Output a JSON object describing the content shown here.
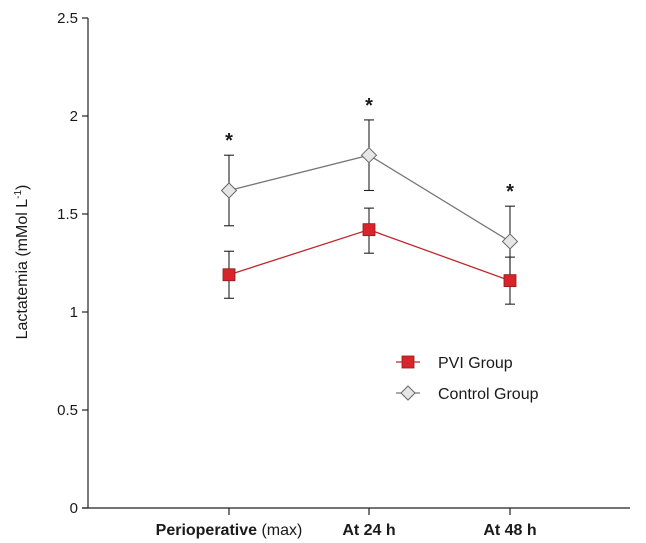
{
  "chart_data": {
    "type": "line",
    "title": "",
    "xlabel": "",
    "ylabel": "Lactatemia (mMol L",
    "ylabel_superscript": "-1",
    "ylabel_suffix": ")",
    "ylim": [
      0,
      2.5
    ],
    "yticks": [
      {
        "value": 0,
        "label": "0"
      },
      {
        "value": 0.5,
        "label": "0.5"
      },
      {
        "value": 1,
        "label": "1"
      },
      {
        "value": 1.5,
        "label": "1.5"
      },
      {
        "value": 2,
        "label": "2"
      },
      {
        "value": 2.5,
        "label": "2.5"
      }
    ],
    "categories": [
      {
        "bold": "Perioperative",
        "normal": " (max)"
      },
      {
        "bold": "At 24 h",
        "normal": ""
      },
      {
        "bold": "At 48 h",
        "normal": ""
      }
    ],
    "series": [
      {
        "name": "PVI Group",
        "marker": "square",
        "color": "#d9242b",
        "line_color": "#c0272d",
        "values": [
          1.19,
          1.42,
          1.16
        ],
        "err_upper": [
          1.31,
          1.53,
          1.28
        ],
        "err_lower": [
          1.07,
          1.3,
          1.04
        ]
      },
      {
        "name": "Control Group",
        "marker": "diamond",
        "color": "#e6e6e6",
        "line_color": "#777777",
        "values": [
          1.62,
          1.8,
          1.36
        ],
        "err_upper": [
          1.8,
          1.98,
          1.54
        ],
        "err_lower": [
          1.44,
          1.62,
          1.18
        ]
      }
    ],
    "significance": [
      "*",
      "*",
      "*"
    ],
    "legend_position": "center-right",
    "grid": false
  }
}
